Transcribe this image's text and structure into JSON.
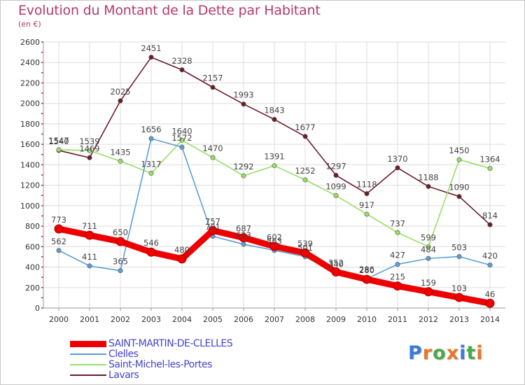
{
  "header": {
    "title": "Evolution du Montant de la Dette par Habitant",
    "subtitle": "(en €)"
  },
  "logo": {
    "text": "Proxiti",
    "letter_colors": [
      "#3a7bd5",
      "#e8762b",
      "#4aa84a",
      "#e8762b",
      "#3a7bd5",
      "#4aa84a",
      "#e8762b"
    ]
  },
  "chart_data": {
    "type": "line",
    "title": "Evolution du Montant de la Dette par Habitant",
    "subtitle": "(en €)",
    "xlabel": "",
    "ylabel": "",
    "x": [
      "2000",
      "2001",
      "2002",
      "2003",
      "2004",
      "2005",
      "2006",
      "2007",
      "2008",
      "2009",
      "2010",
      "2011",
      "2012",
      "2013",
      "2014"
    ],
    "ylim": [
      0,
      2600
    ],
    "yticks": [
      "0",
      "200",
      "400",
      "600",
      "800",
      "1000",
      "1200",
      "1400",
      "1600",
      "1800",
      "2000",
      "2200",
      "2400",
      "2600"
    ],
    "grid": true,
    "legend_position": "bottom-left",
    "series": [
      {
        "name": "Lavars",
        "color": "#6b1c2a",
        "values": [
          1540,
          1469,
          2025,
          2451,
          2328,
          2157,
          1993,
          1843,
          1677,
          1297,
          1118,
          1370,
          1188,
          1090,
          814
        ],
        "labels": [
          "1540",
          "1469",
          "2025",
          "2451",
          "2328",
          "2157",
          "1993",
          "1843",
          "1677",
          "1297",
          "1118",
          "1370",
          "1188",
          "1090",
          "814"
        ]
      },
      {
        "name": "Saint-Michel-les-Portes",
        "color": "#99dd66",
        "values": [
          1547,
          1539,
          1435,
          1317,
          1640,
          1470,
          1292,
          1391,
          1252,
          1099,
          917,
          737,
          599,
          1450,
          1364
        ],
        "labels": [
          "1547",
          "1539",
          "1435",
          "1317",
          "1640",
          "1470",
          "1292",
          "1391",
          "1252",
          "1099",
          "917",
          "737",
          "599",
          "1450",
          "1364"
        ]
      },
      {
        "name": "Clelles",
        "color": "#5b9fd6",
        "values": [
          562,
          411,
          365,
          1656,
          1572,
          701,
          623,
          563,
          501,
          340,
          286,
          427,
          484,
          503,
          420
        ],
        "labels": [
          "562",
          "411",
          "365",
          "1656",
          "1572",
          "701",
          "623",
          "563",
          "501",
          "340",
          "286",
          "427",
          "484",
          "503",
          "420"
        ]
      },
      {
        "name": "SAINT-MARTIN-DE-CLELLES",
        "color": "#ee0000",
        "values": [
          773,
          711,
          650,
          546,
          480,
          757,
          687,
          602,
          539,
          352,
          280,
          215,
          159,
          103,
          46
        ],
        "labels": [
          "773",
          "711",
          "650",
          "546",
          "480",
          "757",
          "687",
          "602",
          "539",
          "352",
          "280",
          "215",
          "159",
          "103",
          "46"
        ]
      }
    ],
    "legend": [
      {
        "name": "SAINT-MARTIN-DE-CLELLES",
        "color": "#ee0000",
        "width": 9
      },
      {
        "name": "Clelles",
        "color": "#5b9fd6",
        "width": 2
      },
      {
        "name": "Saint-Michel-les-Portes",
        "color": "#99dd66",
        "width": 2
      },
      {
        "name": "Lavars",
        "color": "#6b1c2a",
        "width": 2
      }
    ]
  }
}
